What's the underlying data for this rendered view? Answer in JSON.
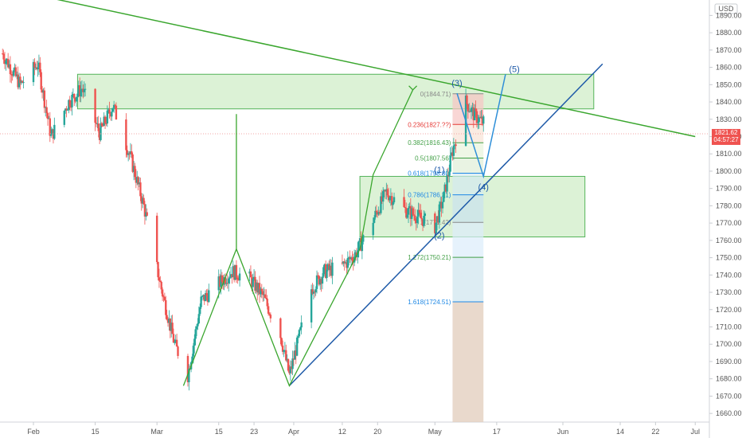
{
  "currency": "USD",
  "price_tag": {
    "price": "1821.62",
    "countdown": "04:57:27",
    "value": 1821.62,
    "color": "#ef5350"
  },
  "colors": {
    "up": "#26a69a",
    "down": "#ef5350",
    "pattern": "#3aa62e",
    "trend": "#1e5aa8",
    "zone_fill": "#d6f0cf",
    "zone_stroke": "#54b45a"
  },
  "chart_data": {
    "type": "candlestick",
    "ylim": [
      1655,
      1898
    ],
    "y_ticks": [
      1890,
      1880,
      1870,
      1860,
      1850,
      1840,
      1830,
      1820,
      1810,
      1800,
      1790,
      1780,
      1770,
      1760,
      1750,
      1740,
      1730,
      1720,
      1710,
      1700,
      1690,
      1680,
      1670,
      1660
    ],
    "x_ticks": [
      {
        "label": "Feb",
        "date": "2021-02-01"
      },
      {
        "label": "15",
        "date": "2021-02-15"
      },
      {
        "label": "Mar",
        "date": "2021-03-01"
      },
      {
        "label": "15",
        "date": "2021-03-15"
      },
      {
        "label": "23",
        "date": "2021-03-23"
      },
      {
        "label": "Apr",
        "date": "2021-04-01"
      },
      {
        "label": "12",
        "date": "2021-04-12"
      },
      {
        "label": "20",
        "date": "2021-04-20"
      },
      {
        "label": "May",
        "date": "2021-05-03"
      },
      {
        "label": "17",
        "date": "2021-05-17"
      },
      {
        "label": "Jun",
        "date": "2021-06-01"
      },
      {
        "label": "14",
        "date": "2021-06-14"
      },
      {
        "label": "22",
        "date": "2021-06-22"
      },
      {
        "label": "Jul",
        "date": "2021-07-01"
      }
    ],
    "close_path": [
      [
        "2021-01-25",
        1868
      ],
      [
        "2021-01-29",
        1850
      ],
      [
        "2021-02-02",
        1862
      ],
      [
        "2021-02-05",
        1820
      ],
      [
        "2021-02-09",
        1840
      ],
      [
        "2021-02-12",
        1848
      ],
      [
        "2021-02-16",
        1822
      ],
      [
        "2021-02-19",
        1838
      ],
      [
        "2021-02-23",
        1808
      ],
      [
        "2021-02-26",
        1780
      ],
      [
        "2021-03-02",
        1732
      ],
      [
        "2021-03-05",
        1700
      ],
      [
        "2021-03-08",
        1682
      ],
      [
        "2021-03-11",
        1725
      ],
      [
        "2021-03-15",
        1735
      ],
      [
        "2021-03-18",
        1742
      ],
      [
        "2021-03-22",
        1738
      ],
      [
        "2021-03-25",
        1728
      ],
      [
        "2021-03-29",
        1705
      ],
      [
        "2021-03-31",
        1682
      ],
      [
        "2021-04-05",
        1732
      ],
      [
        "2021-04-08",
        1742
      ],
      [
        "2021-04-12",
        1745
      ],
      [
        "2021-04-15",
        1752
      ],
      [
        "2021-04-19",
        1772
      ],
      [
        "2021-04-22",
        1788
      ],
      [
        "2021-04-26",
        1778
      ],
      [
        "2021-04-29",
        1774
      ],
      [
        "2021-05-03",
        1768
      ],
      [
        "2021-05-05",
        1785
      ],
      [
        "2021-05-07",
        1812
      ],
      [
        "2021-05-10",
        1840
      ],
      [
        "2021-05-12",
        1832
      ],
      [
        "2021-05-14",
        1828
      ]
    ],
    "resistance_zone": {
      "y": [
        1836,
        1856
      ],
      "x": [
        "2021-02-11",
        "2021-06-08"
      ]
    },
    "support_zone": {
      "y": [
        1762,
        1797
      ],
      "x": [
        "2021-04-16",
        "2021-06-06"
      ]
    },
    "descending_trendline": {
      "from": [
        "2021-02-05",
        1900
      ],
      "to": [
        "2021-07-01",
        1820
      ]
    },
    "ascending_trendline": {
      "from": [
        "2021-03-31",
        1676
      ],
      "to": [
        "2021-06-10",
        1862
      ]
    },
    "harmonic_pattern": [
      [
        "2021-03-07",
        1676
      ],
      [
        "2021-03-19",
        1755
      ],
      [
        "2021-03-31",
        1676
      ],
      [
        "2021-04-16",
        1755
      ],
      [
        "2021-04-19",
        1798
      ],
      [
        "2021-04-28",
        1847
      ]
    ],
    "measured_move_line": {
      "date": "2021-03-19",
      "y": [
        1833,
        1755
      ]
    },
    "fibonacci": {
      "x": [
        "2021-05-07",
        "2021-05-14"
      ],
      "levels": [
        {
          "label": "0(1844.71)",
          "value": 1844.71,
          "color": "#888888"
        },
        {
          "label": "0.236(1827.??)",
          "value": 1827,
          "color": "#e53935"
        },
        {
          "label": "0.382(1816.43)",
          "value": 1816.43,
          "color": "#43a047"
        },
        {
          "label": "0.5(1807.56)",
          "value": 1807.56,
          "color": "#43a047"
        },
        {
          "label": "0.618(1798.80)",
          "value": 1798.8,
          "color": "#1e88e5"
        },
        {
          "label": "0.786(1786.31)",
          "value": 1786.31,
          "color": "#1e88e5"
        },
        {
          "label": "1(1770.42)",
          "value": 1770.42,
          "color": "#888888"
        },
        {
          "label": "1.272(1750.21)",
          "value": 1750.21,
          "color": "#43a047"
        },
        {
          "label": "1.618(1724.51)",
          "value": 1724.51,
          "color": "#1e88e5"
        }
      ]
    },
    "elliott_waves": [
      {
        "label": "(1)",
        "date": "2021-05-04",
        "value": 1801
      },
      {
        "label": "(2)",
        "date": "2021-05-04",
        "value": 1763
      },
      {
        "label": "(3)",
        "date": "2021-05-08",
        "value": 1851
      },
      {
        "label": "(4)",
        "date": "2021-05-14",
        "value": 1791
      },
      {
        "label": "(5)",
        "date": "2021-05-21",
        "value": 1859
      }
    ],
    "projection_path": [
      [
        "2021-05-08",
        1845
      ],
      [
        "2021-05-14",
        1797
      ],
      [
        "2021-05-19",
        1856
      ]
    ]
  }
}
